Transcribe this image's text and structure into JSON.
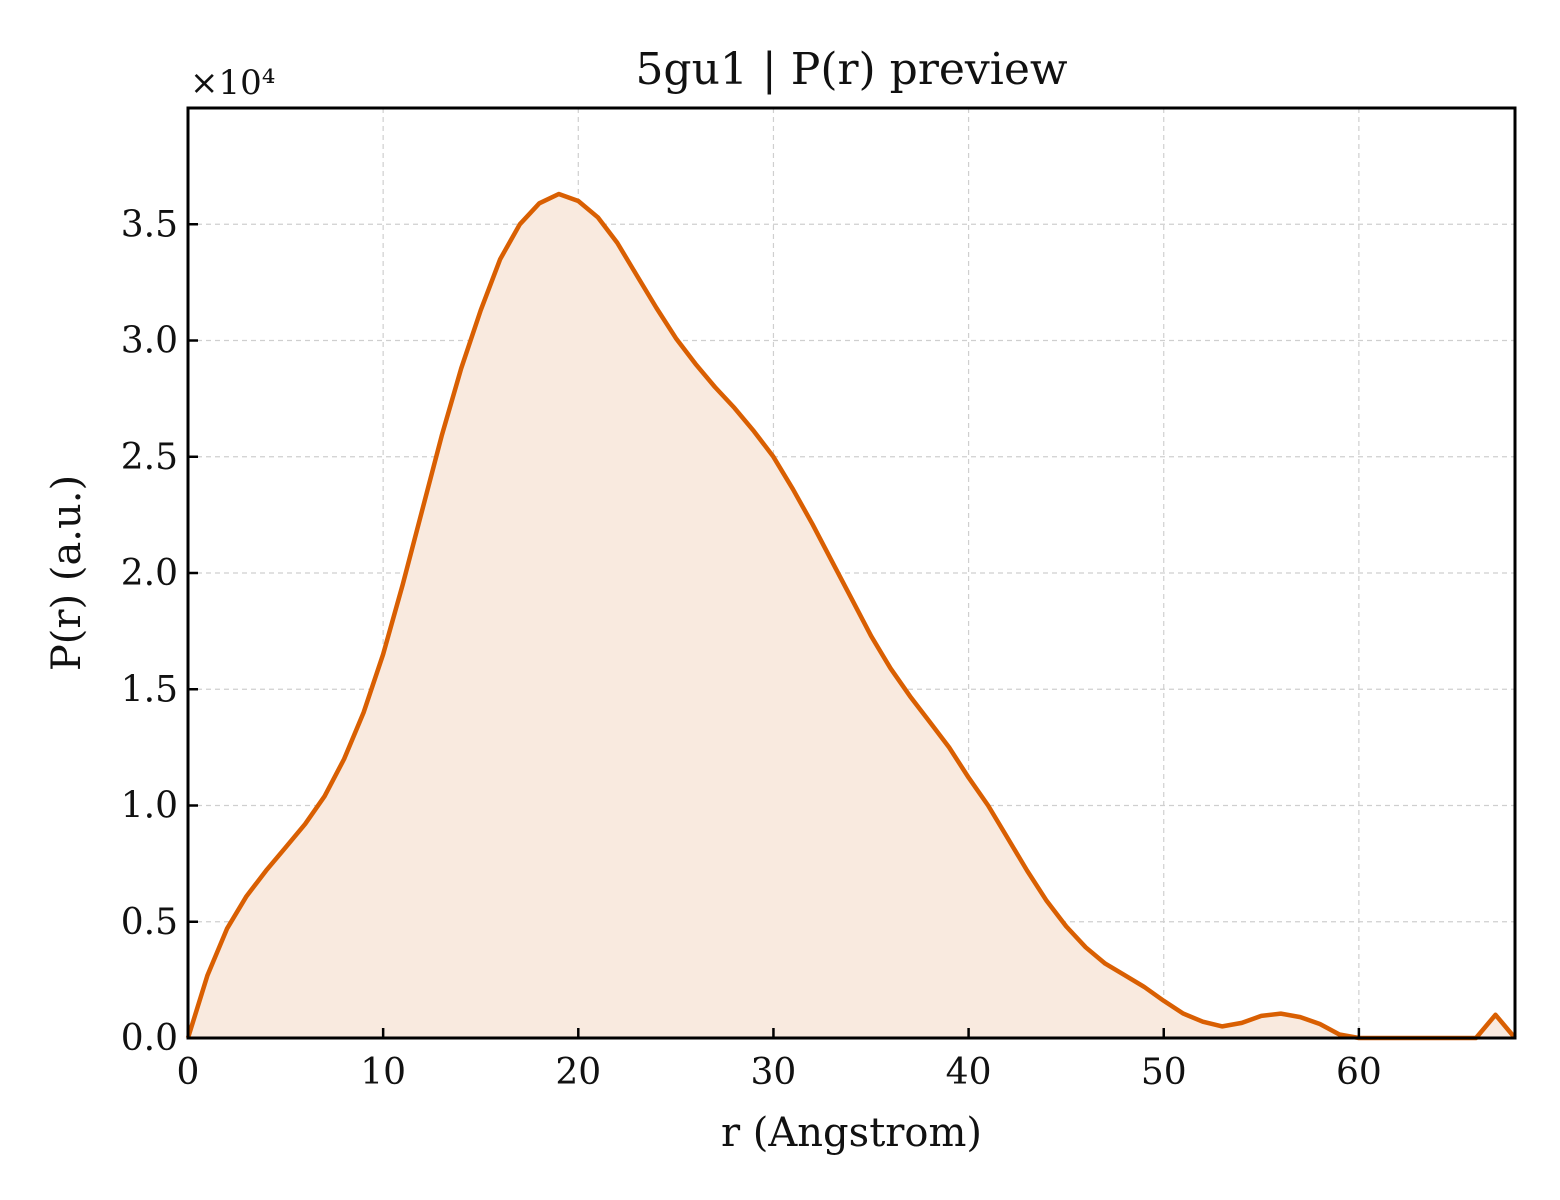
{
  "chart_data": {
    "type": "area",
    "title": "5gu1 | P(r) preview",
    "xlabel": "r (Angstrom)",
    "ylabel": "P(r) (a.u.)",
    "y_multiplier_label": "×10⁴",
    "y_multiplier": 10000,
    "xlim": [
      0,
      68
    ],
    "ylim": [
      0,
      40000
    ],
    "xticks": [
      0,
      10,
      20,
      30,
      40,
      50,
      60
    ],
    "xtick_labels": [
      "0",
      "10",
      "20",
      "30",
      "40",
      "50",
      "60"
    ],
    "yticks": [
      0,
      5000,
      10000,
      15000,
      20000,
      25000,
      30000,
      35000
    ],
    "ytick_labels": [
      "0.0",
      "0.5",
      "1.0",
      "1.5",
      "2.0",
      "2.5",
      "3.0",
      "3.5"
    ],
    "grid": true,
    "line_color": "#d95f02",
    "fill_color": "#f9eadf",
    "series": [
      {
        "x": [
          0,
          1,
          2,
          3,
          4,
          5,
          6,
          7,
          8,
          9,
          10,
          11,
          12,
          13,
          14,
          15,
          16,
          17,
          18,
          19,
          20,
          21,
          22,
          23,
          24,
          25,
          26,
          27,
          28,
          29,
          30,
          31,
          32,
          33,
          34,
          35,
          36,
          37,
          38,
          39,
          40,
          41,
          42,
          43,
          44,
          45,
          46,
          47,
          48,
          49,
          50,
          51,
          52,
          53,
          54,
          55,
          56,
          57,
          58,
          59,
          60,
          61,
          62,
          63,
          64,
          65,
          66,
          67,
          68
        ],
        "values": [
          0,
          2700,
          4700,
          6100,
          7200,
          8200,
          9200,
          10400,
          12000,
          14000,
          16500,
          19500,
          22700,
          25900,
          28800,
          31300,
          33500,
          35000,
          35900,
          36300,
          36000,
          35300,
          34200,
          32800,
          31400,
          30100,
          29000,
          28000,
          27100,
          26100,
          25000,
          23600,
          22100,
          20500,
          18900,
          17300,
          15900,
          14700,
          13600,
          12500,
          11200,
          10000,
          8600,
          7200,
          5900,
          4800,
          3900,
          3200,
          2700,
          2200,
          1600,
          1050,
          700,
          500,
          650,
          950,
          1050,
          900,
          600,
          150,
          0,
          0,
          0,
          0,
          0,
          0,
          0,
          1000,
          0
        ]
      }
    ]
  }
}
